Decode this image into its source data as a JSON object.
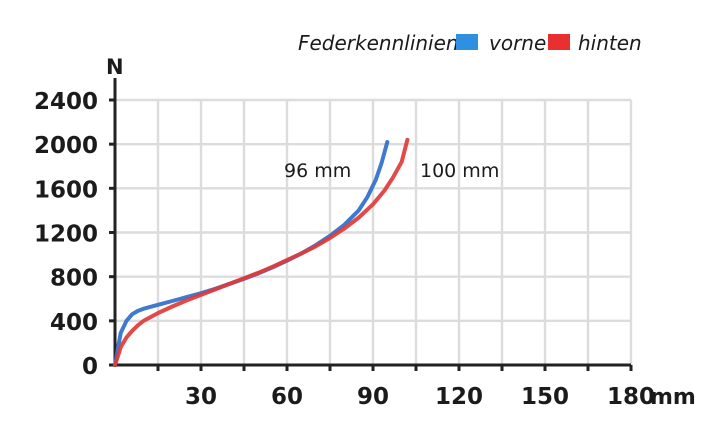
{
  "chart_data": {
    "type": "line",
    "legend": {
      "title": "Federkennlinien:",
      "placement": "top-right",
      "entries": [
        "vorne",
        "hinten"
      ]
    },
    "xlabel": "mm",
    "ylabel": "N",
    "xlim": [
      0,
      180
    ],
    "ylim": [
      0,
      2400
    ],
    "x_ticks": [
      30,
      60,
      90,
      120,
      150,
      180
    ],
    "x_tick_labels": [
      "30",
      "60",
      "90",
      "120",
      "150",
      "180"
    ],
    "x_minor_ticks": [
      15,
      45,
      75,
      105,
      135,
      165
    ],
    "y_ticks": [
      0,
      400,
      800,
      1200,
      1600,
      2000,
      2400
    ],
    "y_tick_labels": [
      "0",
      "400",
      "800",
      "1200",
      "1600",
      "2000",
      "2400"
    ],
    "grid": true,
    "series": [
      {
        "name": "vorne",
        "color": "#2f6fc9",
        "points": [
          [
            0,
            0
          ],
          [
            1,
            150
          ],
          [
            2,
            290
          ],
          [
            4,
            400
          ],
          [
            6,
            460
          ],
          [
            8,
            490
          ],
          [
            10,
            510
          ],
          [
            15,
            545
          ],
          [
            20,
            580
          ],
          [
            25,
            615
          ],
          [
            30,
            650
          ],
          [
            35,
            690
          ],
          [
            40,
            735
          ],
          [
            45,
            780
          ],
          [
            50,
            830
          ],
          [
            55,
            885
          ],
          [
            60,
            945
          ],
          [
            65,
            1010
          ],
          [
            70,
            1085
          ],
          [
            75,
            1170
          ],
          [
            80,
            1270
          ],
          [
            85,
            1400
          ],
          [
            88,
            1520
          ],
          [
            91,
            1680
          ],
          [
            93,
            1830
          ],
          [
            95,
            2020
          ]
        ]
      },
      {
        "name": "hinten",
        "color": "#e03a3a",
        "points": [
          [
            0,
            0
          ],
          [
            1,
            80
          ],
          [
            2,
            160
          ],
          [
            4,
            250
          ],
          [
            6,
            310
          ],
          [
            8,
            360
          ],
          [
            10,
            400
          ],
          [
            15,
            470
          ],
          [
            20,
            530
          ],
          [
            25,
            585
          ],
          [
            30,
            635
          ],
          [
            35,
            685
          ],
          [
            40,
            735
          ],
          [
            45,
            785
          ],
          [
            50,
            835
          ],
          [
            55,
            890
          ],
          [
            60,
            950
          ],
          [
            65,
            1010
          ],
          [
            70,
            1075
          ],
          [
            75,
            1150
          ],
          [
            80,
            1235
          ],
          [
            85,
            1335
          ],
          [
            90,
            1455
          ],
          [
            94,
            1580
          ],
          [
            97,
            1700
          ],
          [
            100,
            1840
          ],
          [
            102,
            2040
          ]
        ]
      }
    ],
    "annotations": [
      {
        "text": "96 mm",
        "series": "vorne"
      },
      {
        "text": "100 mm",
        "series": "hinten"
      }
    ]
  }
}
